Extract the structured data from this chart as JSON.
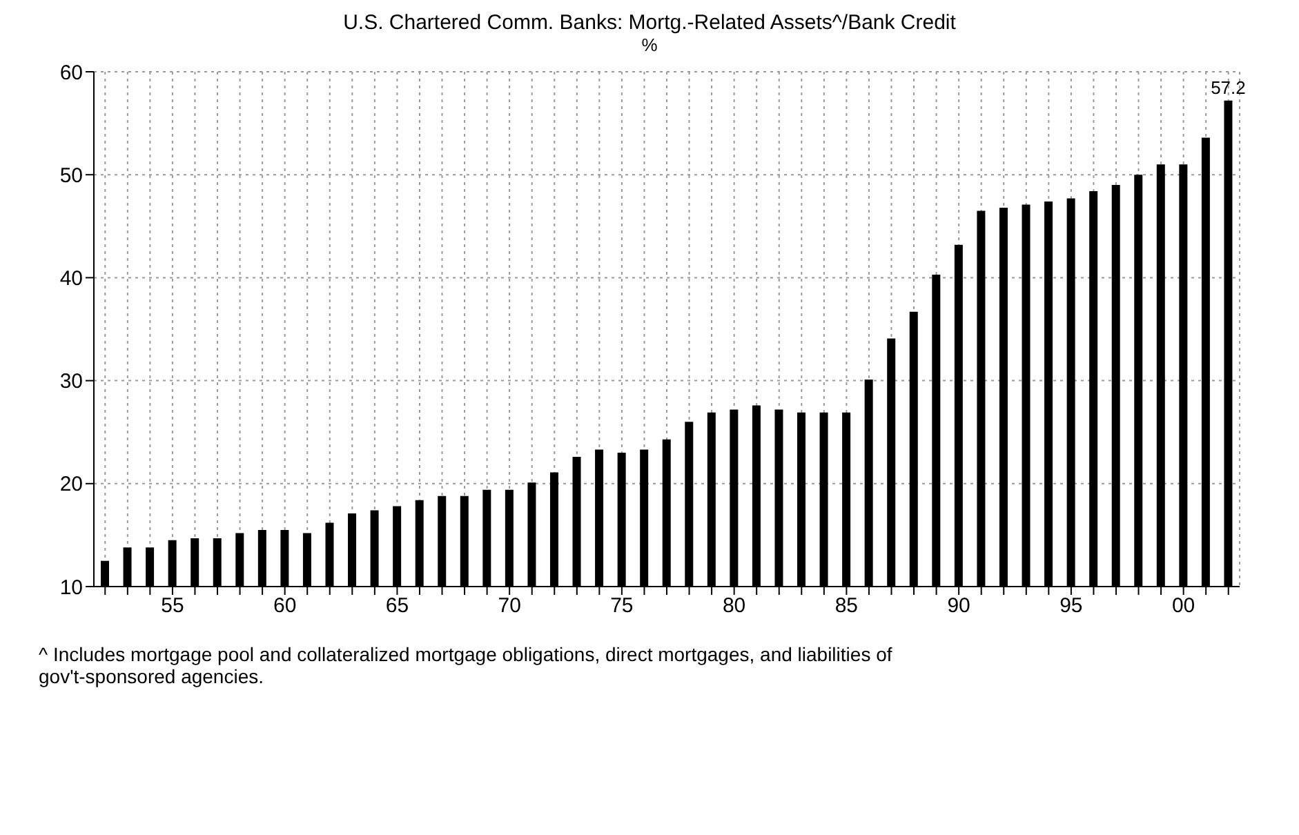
{
  "chart_data": {
    "type": "bar",
    "title": "U.S. Chartered Comm. Banks: Mortg.-Related Assets^/Bank Credit",
    "subtitle": "%",
    "categories": [
      null,
      null,
      null,
      "55",
      null,
      null,
      null,
      null,
      "60",
      null,
      null,
      null,
      null,
      "65",
      null,
      null,
      null,
      null,
      "70",
      null,
      null,
      null,
      null,
      "75",
      null,
      null,
      null,
      null,
      "80",
      null,
      null,
      null,
      null,
      "85",
      null,
      null,
      null,
      null,
      "90",
      null,
      null,
      null,
      null,
      "95",
      null,
      null,
      null,
      null,
      "00",
      null,
      null
    ],
    "values": [
      12.5,
      13.8,
      13.8,
      14.5,
      14.7,
      14.7,
      15.2,
      15.5,
      15.5,
      15.2,
      16.2,
      17.1,
      17.4,
      17.8,
      18.4,
      18.8,
      18.8,
      19.4,
      19.4,
      20.1,
      21.1,
      22.6,
      23.3,
      23.0,
      23.3,
      24.3,
      26.0,
      26.9,
      27.2,
      27.6,
      27.2,
      26.9,
      26.9,
      26.9,
      30.1,
      34.1,
      36.7,
      40.3,
      43.2,
      46.5,
      46.8,
      47.1,
      47.4,
      47.7,
      48.4,
      49.0,
      50.0,
      51.0,
      51.0,
      53.6,
      57.2
    ],
    "value_labels": [
      null,
      null,
      null,
      null,
      null,
      null,
      null,
      null,
      null,
      null,
      null,
      null,
      null,
      null,
      null,
      null,
      null,
      null,
      null,
      null,
      null,
      null,
      null,
      null,
      null,
      null,
      null,
      null,
      null,
      null,
      null,
      null,
      null,
      null,
      null,
      null,
      null,
      null,
      null,
      null,
      null,
      null,
      null,
      null,
      null,
      null,
      null,
      null,
      null,
      null,
      "57.2"
    ],
    "color": "#000000",
    "ylim": [
      10,
      60
    ],
    "yticks": [
      10,
      20,
      30,
      40,
      50,
      60
    ],
    "grid": true,
    "annotations": [
      "^ Includes mortgage pool and collateralized mortgage obligations, direct mortgages, and liabilities of gov't-sponsored agencies."
    ]
  }
}
